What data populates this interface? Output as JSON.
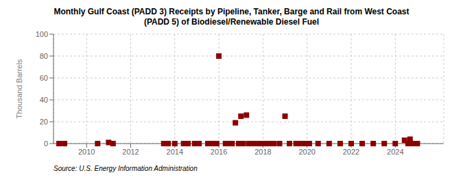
{
  "chart_data": {
    "type": "scatter",
    "title": "Monthly Gulf Coast (PADD 3) Receipts by Pipeline, Tanker, Barge and Rail from West Coast\n(PADD 5) of Biodiesel/Renewable Diesel Fuel",
    "ylabel": "Thousand Barrels",
    "annotations": [
      "Source: U.S. Energy Information Administration"
    ],
    "x": [
      2008.75,
      2009.0,
      2010.5,
      2011.0,
      2011.2,
      2013.5,
      2013.7,
      2014.0,
      2014.4,
      2014.5,
      2014.6,
      2014.9,
      2015.0,
      2015.1,
      2015.5,
      2015.7,
      2015.9,
      2016.0,
      2016.3,
      2016.5,
      2016.6,
      2016.75,
      2016.9,
      2017.0,
      2017.1,
      2017.25,
      2017.35,
      2017.5,
      2017.6,
      2017.7,
      2017.85,
      2018.0,
      2018.1,
      2018.3,
      2018.5,
      2018.75,
      2019.0,
      2019.2,
      2019.5,
      2019.7,
      2019.9,
      2020.1,
      2020.5,
      2021.0,
      2021.5,
      2022.0,
      2022.5,
      2023.0,
      2023.5,
      2024.0,
      2024.42,
      2024.58,
      2024.67,
      2024.83,
      2025.0
    ],
    "values": [
      0,
      0,
      0,
      1,
      0,
      0,
      0,
      0,
      0,
      0,
      0,
      0,
      0,
      0,
      0,
      0,
      0,
      80,
      0,
      0,
      0,
      19,
      0,
      25,
      0,
      26,
      0,
      0,
      0,
      0,
      0,
      0,
      0,
      0,
      0,
      0,
      25,
      0,
      0,
      0,
      0,
      0,
      0,
      0,
      0,
      0,
      0,
      0,
      0,
      0,
      3,
      0,
      4,
      0,
      0
    ],
    "color": "#8b0000",
    "marker": "square",
    "xlim": [
      2008.5,
      2026.2
    ],
    "xticks": [
      2010,
      2012,
      2014,
      2016,
      2018,
      2020,
      2022,
      2024
    ],
    "ylim": [
      0,
      100
    ],
    "yticks": [
      0,
      20,
      40,
      60,
      80,
      100
    ],
    "grid": true
  }
}
